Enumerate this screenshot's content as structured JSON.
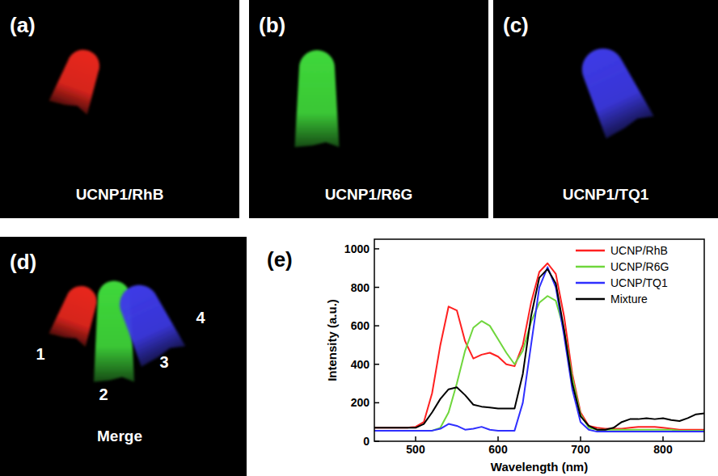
{
  "panels": [
    {
      "letter": "(a)",
      "caption": "UCNP1/RhB",
      "color": "#e8261e"
    },
    {
      "letter": "(b)",
      "caption": "UCNP1/R6G",
      "color": "#3fd83a"
    },
    {
      "letter": "(c)",
      "caption": "UCNP1/TQ1",
      "color": "#3d3ae6"
    }
  ],
  "merge": {
    "letter": "(d)",
    "caption": "Merge",
    "tubes": [
      {
        "label": "1",
        "color": "#e8261e"
      },
      {
        "label": "2",
        "color": "#3fd83a"
      },
      {
        "label": "3",
        "color": "#3d3ae6"
      }
    ],
    "extra_label": "4"
  },
  "chart_data": {
    "type": "line",
    "panel_letter": "(e)",
    "x_label": "Wavelength (nm)",
    "y_label": "Intensity (a.u.)",
    "x": [
      450,
      460,
      470,
      480,
      490,
      500,
      510,
      520,
      530,
      540,
      550,
      560,
      570,
      580,
      590,
      600,
      610,
      620,
      630,
      640,
      650,
      660,
      670,
      680,
      690,
      700,
      710,
      720,
      730,
      740,
      750,
      760,
      770,
      780,
      790,
      800,
      810,
      820,
      830,
      840,
      850
    ],
    "xlim": [
      450,
      850
    ],
    "xticks": [
      500,
      600,
      700,
      800
    ],
    "ylim": [
      0,
      1050
    ],
    "yticks": [
      0,
      200,
      400,
      600,
      800,
      1000
    ],
    "legend": "upper right",
    "series": [
      {
        "name": "UCNP/RhB",
        "color": "#ff2020",
        "values": [
          70,
          70,
          70,
          70,
          70,
          75,
          100,
          250,
          500,
          700,
          680,
          520,
          430,
          450,
          460,
          440,
          400,
          390,
          500,
          720,
          880,
          925,
          870,
          650,
          350,
          150,
          80,
          70,
          65,
          65,
          65,
          70,
          75,
          75,
          75,
          70,
          65,
          60,
          60,
          60,
          60
        ]
      },
      {
        "name": "UCNP/R6G",
        "color": "#6fd63c",
        "values": [
          55,
          55,
          55,
          55,
          55,
          55,
          55,
          55,
          70,
          150,
          300,
          470,
          590,
          625,
          600,
          530,
          460,
          400,
          470,
          620,
          720,
          755,
          730,
          580,
          330,
          140,
          70,
          60,
          60,
          60,
          60,
          60,
          60,
          60,
          60,
          60,
          60,
          55,
          55,
          55,
          55
        ]
      },
      {
        "name": "UCNP/TQ1",
        "color": "#2f2fff",
        "values": [
          55,
          55,
          55,
          55,
          55,
          55,
          55,
          55,
          65,
          90,
          80,
          60,
          65,
          75,
          60,
          55,
          55,
          55,
          200,
          500,
          800,
          905,
          800,
          550,
          270,
          100,
          60,
          50,
          50,
          50,
          50,
          50,
          50,
          50,
          50,
          50,
          50,
          50,
          50,
          50,
          50
        ]
      },
      {
        "name": "Mixture",
        "color": "#000000",
        "values": [
          70,
          70,
          70,
          70,
          70,
          70,
          90,
          150,
          220,
          270,
          280,
          240,
          190,
          180,
          175,
          170,
          170,
          170,
          350,
          650,
          850,
          895,
          820,
          580,
          300,
          130,
          80,
          60,
          60,
          70,
          100,
          115,
          115,
          120,
          115,
          120,
          110,
          105,
          120,
          140,
          145
        ]
      }
    ]
  }
}
